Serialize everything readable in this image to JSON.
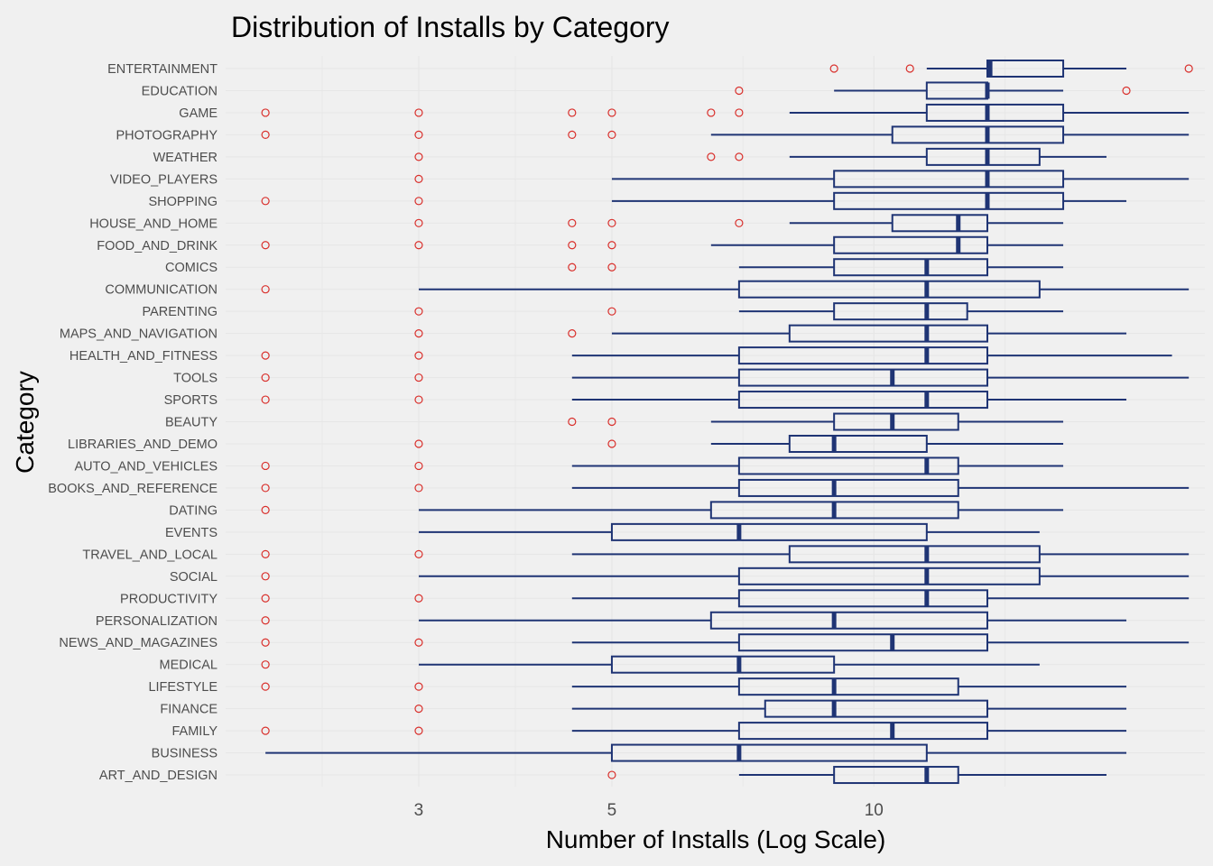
{
  "colors": {
    "background": "#f0f0f0",
    "box_stroke": "#1f3474",
    "outlier": "#d9302c",
    "grid": "#e6e6e6"
  },
  "chart_data": {
    "type": "boxplot",
    "title": "Distribution of Installs by Category",
    "xlabel": "Number of Installs (Log Scale)",
    "ylabel": "Category",
    "x_scale": "log",
    "xlim": [
      1.8,
      24
    ],
    "x_ticks": [
      3,
      5,
      10
    ],
    "x_tick_labels": [
      "3",
      "5",
      "10"
    ],
    "grid": true,
    "legend": "none",
    "series": [
      {
        "category": "ENTERTAINMENT",
        "whisker_low": 11.5,
        "q1": 13.5,
        "median": 13.6,
        "q3": 16.5,
        "whisker_high": 19.5,
        "outliers": [
          9,
          11,
          23
        ]
      },
      {
        "category": "EDUCATION",
        "whisker_low": 9,
        "q1": 11.5,
        "median": 13.5,
        "q3": 13.5,
        "whisker_high": 16.5,
        "outliers": [
          7,
          19.5
        ]
      },
      {
        "category": "GAME",
        "whisker_low": 8,
        "q1": 11.5,
        "median": 13.5,
        "q3": 16.5,
        "whisker_high": 23,
        "outliers": [
          2,
          3,
          4.5,
          5,
          6.5,
          7
        ]
      },
      {
        "category": "PHOTOGRAPHY",
        "whisker_low": 6.5,
        "q1": 10.5,
        "median": 13.5,
        "q3": 16.5,
        "whisker_high": 23,
        "outliers": [
          2,
          3,
          4.5,
          5
        ]
      },
      {
        "category": "WEATHER",
        "whisker_low": 8,
        "q1": 11.5,
        "median": 13.5,
        "q3": 15.5,
        "whisker_high": 18.5,
        "outliers": [
          3,
          6.5,
          7
        ]
      },
      {
        "category": "VIDEO_PLAYERS",
        "whisker_low": 5,
        "q1": 9,
        "median": 13.5,
        "q3": 16.5,
        "whisker_high": 23,
        "outliers": [
          3
        ]
      },
      {
        "category": "SHOPPING",
        "whisker_low": 5,
        "q1": 9,
        "median": 13.5,
        "q3": 16.5,
        "whisker_high": 19.5,
        "outliers": [
          2,
          3
        ]
      },
      {
        "category": "HOUSE_AND_HOME",
        "whisker_low": 8,
        "q1": 10.5,
        "median": 12.5,
        "q3": 13.5,
        "whisker_high": 16.5,
        "outliers": [
          3,
          4.5,
          5,
          7
        ]
      },
      {
        "category": "FOOD_AND_DRINK",
        "whisker_low": 6.5,
        "q1": 9,
        "median": 12.5,
        "q3": 13.5,
        "whisker_high": 16.5,
        "outliers": [
          2,
          3,
          4.5,
          5
        ]
      },
      {
        "category": "COMICS",
        "whisker_low": 7,
        "q1": 9,
        "median": 11.5,
        "q3": 13.5,
        "whisker_high": 16.5,
        "outliers": [
          4.5,
          5
        ]
      },
      {
        "category": "COMMUNICATION",
        "whisker_low": 3,
        "q1": 7,
        "median": 11.5,
        "q3": 15.5,
        "whisker_high": 23,
        "outliers": [
          2
        ]
      },
      {
        "category": "PARENTING",
        "whisker_low": 7,
        "q1": 9,
        "median": 11.5,
        "q3": 12.8,
        "whisker_high": 16.5,
        "outliers": [
          3,
          5
        ]
      },
      {
        "category": "MAPS_AND_NAVIGATION",
        "whisker_low": 5,
        "q1": 8,
        "median": 11.5,
        "q3": 13.5,
        "whisker_high": 19.5,
        "outliers": [
          3,
          4.5
        ]
      },
      {
        "category": "HEALTH_AND_FITNESS",
        "whisker_low": 4.5,
        "q1": 7,
        "median": 11.5,
        "q3": 13.5,
        "whisker_high": 22,
        "outliers": [
          2,
          3
        ]
      },
      {
        "category": "TOOLS",
        "whisker_low": 4.5,
        "q1": 7,
        "median": 10.5,
        "q3": 13.5,
        "whisker_high": 23,
        "outliers": [
          2,
          3
        ]
      },
      {
        "category": "SPORTS",
        "whisker_low": 4.5,
        "q1": 7,
        "median": 11.5,
        "q3": 13.5,
        "whisker_high": 19.5,
        "outliers": [
          2,
          3
        ]
      },
      {
        "category": "BEAUTY",
        "whisker_low": 6.5,
        "q1": 9,
        "median": 10.5,
        "q3": 12.5,
        "whisker_high": 16.5,
        "outliers": [
          4.5,
          5
        ]
      },
      {
        "category": "LIBRARIES_AND_DEMO",
        "whisker_low": 6.5,
        "q1": 8,
        "median": 9,
        "q3": 11.5,
        "whisker_high": 16.5,
        "outliers": [
          3,
          5
        ]
      },
      {
        "category": "AUTO_AND_VEHICLES",
        "whisker_low": 4.5,
        "q1": 7,
        "median": 11.5,
        "q3": 12.5,
        "whisker_high": 16.5,
        "outliers": [
          2,
          3
        ]
      },
      {
        "category": "BOOKS_AND_REFERENCE",
        "whisker_low": 4.5,
        "q1": 7,
        "median": 9,
        "q3": 12.5,
        "whisker_high": 23,
        "outliers": [
          2,
          3
        ]
      },
      {
        "category": "DATING",
        "whisker_low": 3,
        "q1": 6.5,
        "median": 9,
        "q3": 12.5,
        "whisker_high": 16.5,
        "outliers": [
          2
        ]
      },
      {
        "category": "EVENTS",
        "whisker_low": 3,
        "q1": 5,
        "median": 7,
        "q3": 11.5,
        "whisker_high": 15.5,
        "outliers": []
      },
      {
        "category": "TRAVEL_AND_LOCAL",
        "whisker_low": 4.5,
        "q1": 8,
        "median": 11.5,
        "q3": 15.5,
        "whisker_high": 23,
        "outliers": [
          2,
          3
        ]
      },
      {
        "category": "SOCIAL",
        "whisker_low": 3,
        "q1": 7,
        "median": 11.5,
        "q3": 15.5,
        "whisker_high": 23,
        "outliers": [
          2
        ]
      },
      {
        "category": "PRODUCTIVITY",
        "whisker_low": 4.5,
        "q1": 7,
        "median": 11.5,
        "q3": 13.5,
        "whisker_high": 23,
        "outliers": [
          2,
          3
        ]
      },
      {
        "category": "PERSONALIZATION",
        "whisker_low": 3,
        "q1": 6.5,
        "median": 9,
        "q3": 13.5,
        "whisker_high": 19.5,
        "outliers": [
          2
        ]
      },
      {
        "category": "NEWS_AND_MAGAZINES",
        "whisker_low": 4.5,
        "q1": 7,
        "median": 10.5,
        "q3": 13.5,
        "whisker_high": 23,
        "outliers": [
          2,
          3
        ]
      },
      {
        "category": "MEDICAL",
        "whisker_low": 3,
        "q1": 5,
        "median": 7,
        "q3": 9,
        "whisker_high": 15.5,
        "outliers": [
          2
        ]
      },
      {
        "category": "LIFESTYLE",
        "whisker_low": 4.5,
        "q1": 7,
        "median": 9,
        "q3": 12.5,
        "whisker_high": 19.5,
        "outliers": [
          2,
          3
        ]
      },
      {
        "category": "FINANCE",
        "whisker_low": 4.5,
        "q1": 7.5,
        "median": 9,
        "q3": 13.5,
        "whisker_high": 19.5,
        "outliers": [
          3
        ]
      },
      {
        "category": "FAMILY",
        "whisker_low": 4.5,
        "q1": 7,
        "median": 10.5,
        "q3": 13.5,
        "whisker_high": 19.5,
        "outliers": [
          2,
          3
        ]
      },
      {
        "category": "BUSINESS",
        "whisker_low": 2,
        "q1": 5,
        "median": 7,
        "q3": 11.5,
        "whisker_high": 19.5,
        "outliers": []
      },
      {
        "category": "ART_AND_DESIGN",
        "whisker_low": 7,
        "q1": 9,
        "median": 11.5,
        "q3": 12.5,
        "whisker_high": 18.5,
        "outliers": [
          5
        ]
      }
    ]
  }
}
